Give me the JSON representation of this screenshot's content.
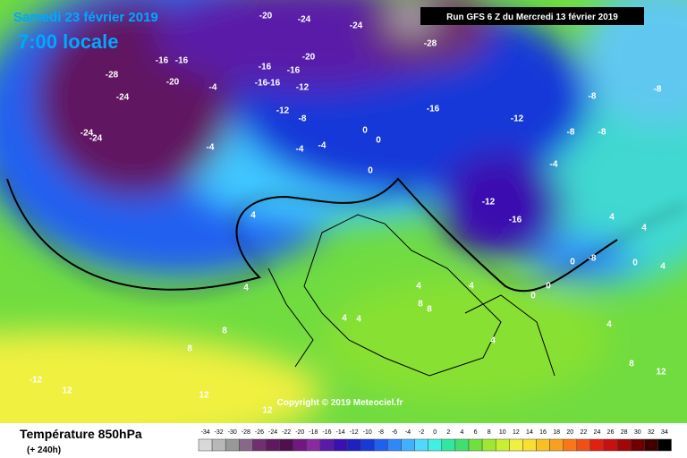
{
  "header": {
    "date": "Samedi 23 février 2019",
    "time": "7:00 locale",
    "run": "Run GFS 6 Z du Mercredi 13 février 2019"
  },
  "copyright": "Copyright © 2019 Meteociel.fr",
  "footer": {
    "title": "Température 850hPa",
    "lead": "(+ 240h)"
  },
  "color_scale": {
    "values": [
      -34,
      -32,
      -30,
      -28,
      -26,
      -24,
      -22,
      -20,
      -18,
      -16,
      -14,
      -12,
      -10,
      -8,
      -6,
      -4,
      -2,
      0,
      2,
      4,
      6,
      8,
      10,
      12,
      14,
      16,
      18,
      20,
      22,
      24,
      26,
      28,
      30,
      32,
      34
    ],
    "colors": [
      "#d8d8d8",
      "#b8b8b8",
      "#989898",
      "#886888",
      "#703070",
      "#601860",
      "#501050",
      "#701880",
      "#8a2aa0",
      "#5a1aa8",
      "#3a10b0",
      "#2020c0",
      "#1838d8",
      "#2060f0",
      "#3088f8",
      "#40b0ff",
      "#50d8ff",
      "#40f0e0",
      "#30e8a0",
      "#40e070",
      "#70e040",
      "#a0e830",
      "#c8f030",
      "#f0f040",
      "#f8e030",
      "#f8c020",
      "#f8a020",
      "#f87818",
      "#f05018",
      "#e02010",
      "#c81010",
      "#a00808",
      "#700000",
      "#400000",
      "#000000"
    ]
  },
  "contour_labels": [
    "-20",
    "-24",
    "-24",
    "-28",
    "-28",
    "-24",
    "-20",
    "-16",
    "-16",
    "-4",
    "-16",
    "-16",
    "-20",
    "-12",
    "-16",
    "-16",
    "-12",
    "-8",
    "-4",
    "-4",
    "-4",
    "0",
    "0",
    "-16",
    "-12",
    "-8",
    "-8",
    "-8",
    "-8",
    "-4",
    "-12",
    "-16",
    "0",
    "4",
    "4",
    "8",
    "8",
    "12",
    "12",
    "12",
    "12",
    "8",
    "-12",
    "4",
    "4",
    "4",
    "8",
    "8",
    "4",
    "4",
    "4",
    "4",
    "4",
    "4",
    "0",
    "0",
    "0",
    "0",
    "-8",
    "-24",
    "-24"
  ]
}
